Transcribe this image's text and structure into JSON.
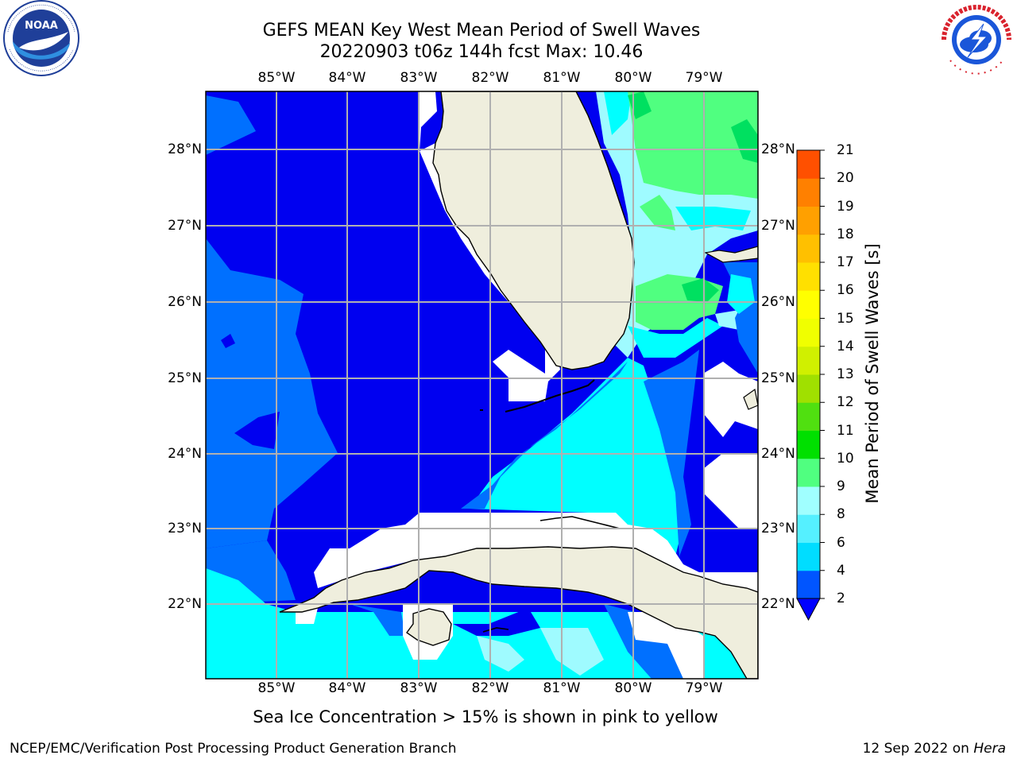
{
  "title_line1": "GEFS MEAN Key West Mean Period of Swell Waves",
  "title_line2": "20220903 t06z 144h fcst   Max: 10.46",
  "lon_labels": [
    "85°W",
    "84°W",
    "83°W",
    "82°W",
    "81°W",
    "80°W",
    "79°W"
  ],
  "lat_labels": [
    "28°N",
    "27°N",
    "26°N",
    "25°N",
    "24°N",
    "23°N",
    "22°N"
  ],
  "colorbar": {
    "label": "Mean Period of Swell Waves [s]",
    "ticks": [
      "21",
      "20",
      "19",
      "18",
      "17",
      "16",
      "15",
      "14",
      "13",
      "12",
      "11",
      "10",
      "9",
      "8",
      "6",
      "4",
      "2"
    ],
    "colors": [
      "#0055ff",
      "#00ddff",
      "#55f0ff",
      "#a0ffff",
      "#50ff80",
      "#00e000",
      "#50e010",
      "#a0e000",
      "#d0f000",
      "#f0ff00",
      "#ffff00",
      "#ffe000",
      "#ffc000",
      "#ffa000",
      "#ff8000",
      "#ff5000",
      "#ff2000",
      "#ff0000"
    ],
    "extend_color": "#0000ff"
  },
  "map_colors": {
    "deep": "#0000f0",
    "mid": "#0070ff",
    "cyan": "#00ffff",
    "light": "#9ffbff",
    "green": "#50ff80",
    "bright_green": "#00e060",
    "land": "#efeedd",
    "gray_grid": "#b0b0b0"
  },
  "footnote": "Sea Ice Concentration > 15% is shown in pink to yellow",
  "credit_left": "NCEP/EMC/Verification Post Processing Product Generation Branch",
  "credit_right_prefix": "12 Sep 2022 on ",
  "credit_right_host": "Hera",
  "logos": {
    "left": "noaa-logo",
    "right": "nws-logo"
  }
}
